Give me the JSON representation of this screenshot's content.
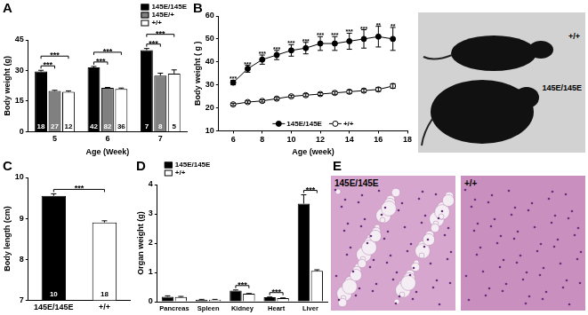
{
  "chart_data": [
    {
      "panel": "A",
      "type": "bar",
      "x_label": "Age (Week)",
      "y_label": "Body weight (g)",
      "categories": [
        "5",
        "6",
        "7"
      ],
      "series": [
        {
          "name": "145E/145E",
          "color": "#000000",
          "values": [
            29.5,
            31.5,
            40
          ],
          "errors": [
            0.6,
            0.5,
            0.8
          ],
          "n": [
            18,
            42,
            7
          ]
        },
        {
          "name": "145E/+",
          "color": "#808080",
          "values": [
            20,
            21.5,
            27.5
          ],
          "errors": [
            0.3,
            0.2,
            1.2
          ],
          "n": [
            27,
            82,
            8
          ]
        },
        {
          "name": "+/+",
          "color": "#ffffff",
          "values": [
            19.5,
            21,
            28.5
          ],
          "errors": [
            0.5,
            0.4,
            1.8
          ],
          "n": [
            12,
            36,
            5
          ]
        }
      ],
      "ylim": [
        0,
        45
      ],
      "yticks": [
        0,
        15,
        30,
        45
      ],
      "grid": false,
      "legend": "upper right",
      "significance": [
        {
          "category": "5",
          "from": "145E/145E",
          "to": "145E/+",
          "label": "***"
        },
        {
          "category": "5",
          "from": "145E/145E",
          "to": "+/+",
          "label": "***"
        },
        {
          "category": "6",
          "from": "145E/145E",
          "to": "145E/+",
          "label": "***"
        },
        {
          "category": "6",
          "from": "145E/145E",
          "to": "+/+",
          "label": "***"
        },
        {
          "category": "7",
          "from": "145E/145E",
          "to": "145E/+",
          "label": "***"
        },
        {
          "category": "7",
          "from": "145E/145E",
          "to": "+/+",
          "label": "***"
        }
      ]
    },
    {
      "panel": "B",
      "type": "line",
      "x_label": "Age (week)",
      "y_label": "Body weight ( g )",
      "x": [
        6,
        7,
        8,
        9,
        10,
        11,
        12,
        13,
        14,
        15,
        16,
        17
      ],
      "series": [
        {
          "name": "145E/145E",
          "color": "#000000",
          "marker": "circle",
          "line_style": "solid",
          "values": [
            31,
            37,
            41,
            43,
            45,
            46,
            48,
            48,
            49,
            50,
            51,
            50
          ],
          "errors": [
            1,
            1.5,
            2,
            2,
            2.5,
            2.5,
            3,
            3,
            3.5,
            4,
            4.5,
            5
          ],
          "point_labels": [
            "***",
            "***",
            "***",
            "***",
            "***",
            "***",
            "***",
            "***",
            "***",
            "***",
            "**",
            "**"
          ]
        },
        {
          "name": "+/+",
          "color": "#ffffff",
          "marker": "circle",
          "line_style": "solid",
          "values": [
            21.5,
            22.5,
            23,
            24,
            25,
            25.5,
            26,
            26.5,
            27,
            27.5,
            28,
            29.5
          ],
          "errors": [
            0.5,
            0.5,
            0.5,
            0.5,
            0.5,
            0.6,
            0.6,
            0.6,
            0.7,
            0.7,
            0.8,
            1
          ]
        }
      ],
      "xlim": [
        5,
        18
      ],
      "xticks": [
        6,
        8,
        10,
        12,
        14,
        16,
        18
      ],
      "ylim": [
        10,
        60
      ],
      "yticks": [
        10,
        20,
        30,
        40,
        50,
        60
      ],
      "grid": false,
      "legend": "lower center"
    },
    {
      "panel": "C",
      "type": "bar",
      "y_label": "Body length (cm)",
      "categories": [
        "145E/145E",
        "+/+"
      ],
      "values": [
        9.55,
        8.9
      ],
      "errors": [
        0.05,
        0.04
      ],
      "n": [
        10,
        18
      ],
      "colors": [
        "#000000",
        "#ffffff"
      ],
      "ylim": [
        7,
        10
      ],
      "yticks": [
        7,
        8,
        9,
        10
      ],
      "grid": false,
      "significance": [
        {
          "from": "145E/145E",
          "to": "+/+",
          "label": "***"
        }
      ]
    },
    {
      "panel": "D",
      "type": "bar",
      "y_label": "Organ weight (g)",
      "categories": [
        "Pancreas",
        "Spleen",
        "Kidney",
        "Heart",
        "Liver"
      ],
      "series": [
        {
          "name": "145E/145E",
          "color": "#000000",
          "values": [
            0.17,
            0.07,
            0.38,
            0.15,
            3.35
          ],
          "errors": [
            0.03,
            0.01,
            0.02,
            0.01,
            0.3
          ]
        },
        {
          "name": "+/+",
          "color": "#ffffff",
          "values": [
            0.16,
            0.07,
            0.27,
            0.12,
            1.05
          ],
          "errors": [
            0.02,
            0.01,
            0.01,
            0.01,
            0.04
          ]
        }
      ],
      "ylim": [
        0,
        4
      ],
      "yticks": [
        0,
        1,
        2,
        3,
        4
      ],
      "grid": false,
      "legend": "upper left",
      "significance": [
        {
          "category": "Kidney",
          "from": "145E/145E",
          "to": "+/+",
          "label": "***"
        },
        {
          "category": "Heart",
          "from": "145E/145E",
          "to": "+/+",
          "label": "***"
        },
        {
          "category": "Liver",
          "from": "145E/145E",
          "to": "+/+",
          "label": "***"
        }
      ]
    }
  ],
  "photo": {
    "labels": [
      "+/+",
      "145E/145E"
    ]
  },
  "histology": {
    "panel": "E",
    "images": [
      {
        "label": "145E/145E"
      },
      {
        "label": "+/+"
      }
    ]
  }
}
